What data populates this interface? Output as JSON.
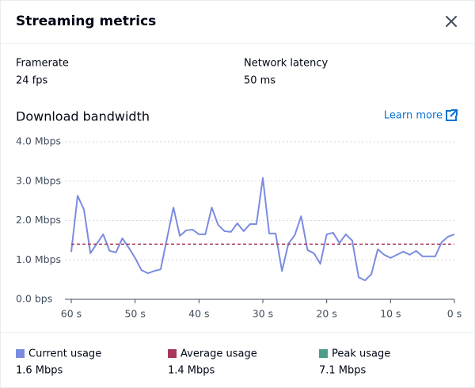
{
  "header": {
    "title": "Streaming metrics"
  },
  "stats": [
    {
      "label": "Framerate",
      "value": "24 fps"
    },
    {
      "label": "Network latency",
      "value": "50 ms"
    }
  ],
  "link": "Learn more",
  "chart_data": {
    "type": "line",
    "title": "Download bandwidth",
    "xlim": [
      60,
      0
    ],
    "xticks": [
      {
        "value": 60,
        "label": "60 s"
      },
      {
        "value": 50,
        "label": "50 s"
      },
      {
        "value": 40,
        "label": "40 s"
      },
      {
        "value": 30,
        "label": "30 s"
      },
      {
        "value": 20,
        "label": "20 s"
      },
      {
        "value": 10,
        "label": "10 s"
      },
      {
        "value": 0,
        "label": "0 s"
      }
    ],
    "ylim": [
      0,
      4
    ],
    "yticks": [
      {
        "value": 0,
        "label": "0.0 bps"
      },
      {
        "value": 1,
        "label": "1.0 Mbps"
      },
      {
        "value": 2,
        "label": "2.0 Mbps"
      },
      {
        "value": 3,
        "label": "3.0 Mbps"
      },
      {
        "value": 4,
        "label": "4.0 Mbps"
      }
    ],
    "grid": true,
    "series": [
      {
        "name": "Current usage",
        "color": "#7a8ce0",
        "legend_value": "1.6 Mbps",
        "x": [
          60,
          59,
          58,
          57,
          56,
          55,
          54,
          53,
          52,
          51,
          50,
          49,
          48,
          47,
          46,
          45,
          44,
          43,
          42,
          41,
          40,
          39,
          38,
          37,
          36,
          35,
          34,
          33,
          32,
          31,
          30,
          29,
          28,
          27,
          26,
          25,
          24,
          23,
          22,
          21,
          20,
          19,
          18,
          17,
          16,
          15,
          14,
          13,
          12,
          11,
          10,
          9,
          8,
          7,
          6,
          5,
          4,
          3,
          2,
          1,
          0
        ],
        "values": [
          1.2,
          2.63,
          2.27,
          1.17,
          1.41,
          1.65,
          1.23,
          1.19,
          1.55,
          1.31,
          1.05,
          0.74,
          0.66,
          0.72,
          0.76,
          1.55,
          2.33,
          1.61,
          1.75,
          1.77,
          1.65,
          1.65,
          2.33,
          1.89,
          1.73,
          1.71,
          1.93,
          1.73,
          1.91,
          1.91,
          3.08,
          1.67,
          1.67,
          0.72,
          1.41,
          1.63,
          2.11,
          1.25,
          1.17,
          0.9,
          1.65,
          1.69,
          1.43,
          1.65,
          1.49,
          0.56,
          0.48,
          0.64,
          1.27,
          1.13,
          1.05,
          1.13,
          1.21,
          1.13,
          1.23,
          1.09,
          1.09,
          1.09,
          1.45,
          1.59,
          1.65
        ]
      },
      {
        "name": "Average usage",
        "color": "#a8385a",
        "legend_value": "1.4 Mbps",
        "dashed": true,
        "x": [
          60,
          0
        ],
        "values": [
          1.4,
          1.4
        ]
      },
      {
        "name": "Peak usage",
        "color": "#4a9e8a",
        "legend_value": "7.1 Mbps"
      }
    ]
  }
}
